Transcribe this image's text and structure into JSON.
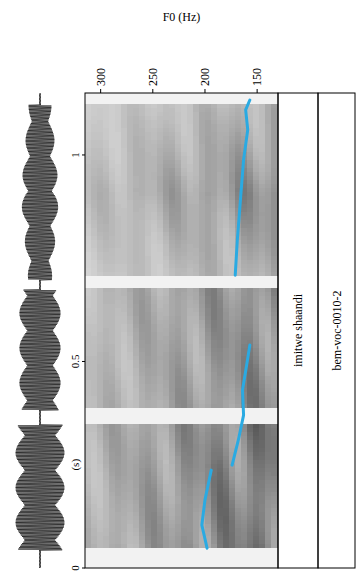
{
  "chart_data": {
    "type": "line",
    "x_label": "(s)",
    "y_label": "F0 (Hz)",
    "x": [
      0.048,
      0.104,
      0.165,
      0.201,
      0.237,
      null,
      0.249,
      0.31,
      0.37,
      0.431,
      0.492,
      0.54,
      null,
      0.709,
      0.794,
      0.891,
      0.988,
      1.061,
      1.109,
      1.133
    ],
    "values": [
      198,
      203,
      200,
      197,
      194,
      null,
      174,
      168,
      163,
      164,
      160,
      157,
      null,
      171,
      169,
      166,
      163,
      159,
      161,
      157
    ],
    "color": "#2aaae2",
    "xlim": [
      0,
      1.15
    ],
    "ylim": [
      130,
      315
    ],
    "xticks": [
      0,
      0.5,
      1
    ],
    "yticks": [
      150,
      200,
      250,
      300
    ],
    "annotations": [
      "imitwe shaandi",
      "bem-voc-0010-2"
    ]
  }
}
